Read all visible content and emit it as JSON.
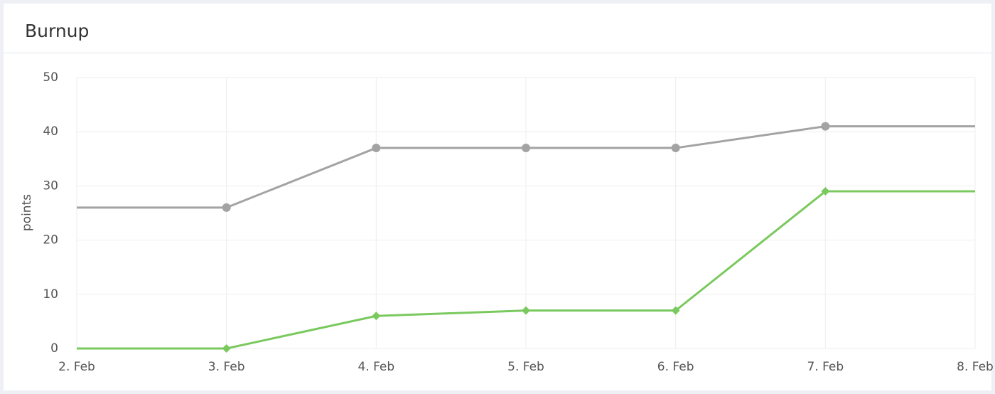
{
  "chart_data": {
    "type": "line",
    "title": "Burnup",
    "y_label": "points",
    "categories": [
      "2. Feb",
      "3. Feb",
      "4. Feb",
      "5. Feb",
      "6. Feb",
      "7. Feb",
      "8. Feb"
    ],
    "series": [
      {
        "color": "#a3a3a3",
        "marker": "circle",
        "values": [
          26,
          26,
          37,
          37,
          37,
          41,
          41
        ]
      },
      {
        "color": "#7ac95e",
        "marker": "diamond",
        "values": [
          0,
          0,
          6,
          7,
          7,
          29,
          29
        ]
      }
    ],
    "ylim": [
      0,
      50
    ],
    "yticks": [
      0,
      10,
      20,
      30,
      40,
      50
    ],
    "grid": true
  }
}
